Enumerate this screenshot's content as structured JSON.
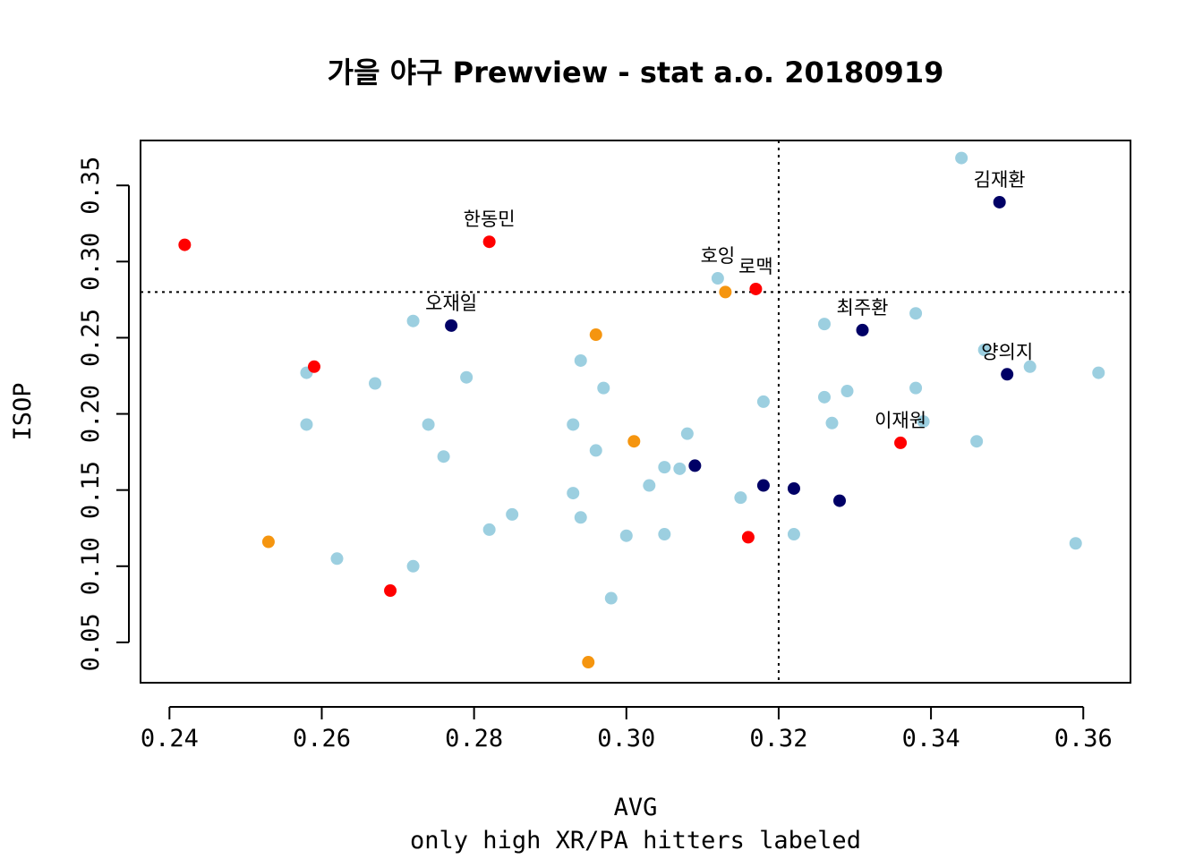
{
  "chart_data": {
    "type": "scatter",
    "title": "가을 야구 Prewview - stat a.o. 20180919",
    "xlabel": "AVG",
    "subtitle": "only high XR/PA hitters labeled",
    "ylabel": "ISOP",
    "xlim": [
      0.2362,
      0.3662
    ],
    "ylim": [
      0.0235,
      0.3795
    ],
    "xticks": [
      "0.24",
      "0.26",
      "0.28",
      "0.30",
      "0.32",
      "0.34",
      "0.36"
    ],
    "yticks": [
      "0.05",
      "0.10",
      "0.15",
      "0.20",
      "0.25",
      "0.30",
      "0.35"
    ],
    "reference_lines": {
      "x": 0.32,
      "y": 0.28
    },
    "grid": false,
    "colors": {
      "lightblue": "#9ccfe0",
      "navy": "#000066",
      "red": "#ff0000",
      "orange": "#f5950f"
    },
    "points": [
      {
        "x": 0.344,
        "y": 0.368,
        "color": "lightblue"
      },
      {
        "x": 0.349,
        "y": 0.339,
        "color": "navy",
        "label": "김재환"
      },
      {
        "x": 0.242,
        "y": 0.311,
        "color": "red"
      },
      {
        "x": 0.282,
        "y": 0.313,
        "color": "red",
        "label": "한동민"
      },
      {
        "x": 0.312,
        "y": 0.289,
        "color": "lightblue",
        "label": "호잉"
      },
      {
        "x": 0.313,
        "y": 0.28,
        "color": "orange"
      },
      {
        "x": 0.317,
        "y": 0.282,
        "color": "red",
        "label": "로맥"
      },
      {
        "x": 0.277,
        "y": 0.258,
        "color": "navy",
        "label": "오재일"
      },
      {
        "x": 0.272,
        "y": 0.261,
        "color": "lightblue"
      },
      {
        "x": 0.296,
        "y": 0.252,
        "color": "orange"
      },
      {
        "x": 0.326,
        "y": 0.259,
        "color": "lightblue"
      },
      {
        "x": 0.331,
        "y": 0.255,
        "color": "navy",
        "label": "최주환"
      },
      {
        "x": 0.338,
        "y": 0.266,
        "color": "lightblue"
      },
      {
        "x": 0.347,
        "y": 0.242,
        "color": "lightblue"
      },
      {
        "x": 0.35,
        "y": 0.226,
        "color": "navy",
        "label": "양의지"
      },
      {
        "x": 0.353,
        "y": 0.231,
        "color": "lightblue"
      },
      {
        "x": 0.362,
        "y": 0.227,
        "color": "lightblue"
      },
      {
        "x": 0.258,
        "y": 0.227,
        "color": "lightblue"
      },
      {
        "x": 0.259,
        "y": 0.231,
        "color": "red"
      },
      {
        "x": 0.267,
        "y": 0.22,
        "color": "lightblue"
      },
      {
        "x": 0.279,
        "y": 0.224,
        "color": "lightblue"
      },
      {
        "x": 0.294,
        "y": 0.235,
        "color": "lightblue"
      },
      {
        "x": 0.297,
        "y": 0.217,
        "color": "lightblue"
      },
      {
        "x": 0.318,
        "y": 0.208,
        "color": "lightblue"
      },
      {
        "x": 0.326,
        "y": 0.211,
        "color": "lightblue"
      },
      {
        "x": 0.329,
        "y": 0.215,
        "color": "lightblue"
      },
      {
        "x": 0.338,
        "y": 0.217,
        "color": "lightblue"
      },
      {
        "x": 0.327,
        "y": 0.194,
        "color": "lightblue"
      },
      {
        "x": 0.339,
        "y": 0.195,
        "color": "lightblue"
      },
      {
        "x": 0.336,
        "y": 0.181,
        "color": "red",
        "label": "이재원"
      },
      {
        "x": 0.346,
        "y": 0.182,
        "color": "lightblue"
      },
      {
        "x": 0.258,
        "y": 0.193,
        "color": "lightblue"
      },
      {
        "x": 0.274,
        "y": 0.193,
        "color": "lightblue"
      },
      {
        "x": 0.276,
        "y": 0.172,
        "color": "lightblue"
      },
      {
        "x": 0.293,
        "y": 0.193,
        "color": "lightblue"
      },
      {
        "x": 0.296,
        "y": 0.176,
        "color": "lightblue"
      },
      {
        "x": 0.301,
        "y": 0.182,
        "color": "orange"
      },
      {
        "x": 0.308,
        "y": 0.187,
        "color": "lightblue"
      },
      {
        "x": 0.305,
        "y": 0.165,
        "color": "lightblue"
      },
      {
        "x": 0.307,
        "y": 0.164,
        "color": "lightblue"
      },
      {
        "x": 0.309,
        "y": 0.166,
        "color": "navy"
      },
      {
        "x": 0.303,
        "y": 0.153,
        "color": "lightblue"
      },
      {
        "x": 0.293,
        "y": 0.148,
        "color": "lightblue"
      },
      {
        "x": 0.315,
        "y": 0.145,
        "color": "lightblue"
      },
      {
        "x": 0.318,
        "y": 0.153,
        "color": "navy"
      },
      {
        "x": 0.322,
        "y": 0.151,
        "color": "navy"
      },
      {
        "x": 0.328,
        "y": 0.143,
        "color": "navy"
      },
      {
        "x": 0.285,
        "y": 0.134,
        "color": "lightblue"
      },
      {
        "x": 0.294,
        "y": 0.132,
        "color": "lightblue"
      },
      {
        "x": 0.282,
        "y": 0.124,
        "color": "lightblue"
      },
      {
        "x": 0.3,
        "y": 0.12,
        "color": "lightblue"
      },
      {
        "x": 0.305,
        "y": 0.121,
        "color": "lightblue"
      },
      {
        "x": 0.316,
        "y": 0.119,
        "color": "red"
      },
      {
        "x": 0.322,
        "y": 0.121,
        "color": "lightblue"
      },
      {
        "x": 0.253,
        "y": 0.116,
        "color": "orange"
      },
      {
        "x": 0.262,
        "y": 0.105,
        "color": "lightblue"
      },
      {
        "x": 0.272,
        "y": 0.1,
        "color": "lightblue"
      },
      {
        "x": 0.269,
        "y": 0.084,
        "color": "red"
      },
      {
        "x": 0.298,
        "y": 0.079,
        "color": "lightblue"
      },
      {
        "x": 0.295,
        "y": 0.037,
        "color": "orange"
      },
      {
        "x": 0.359,
        "y": 0.115,
        "color": "lightblue"
      }
    ]
  }
}
